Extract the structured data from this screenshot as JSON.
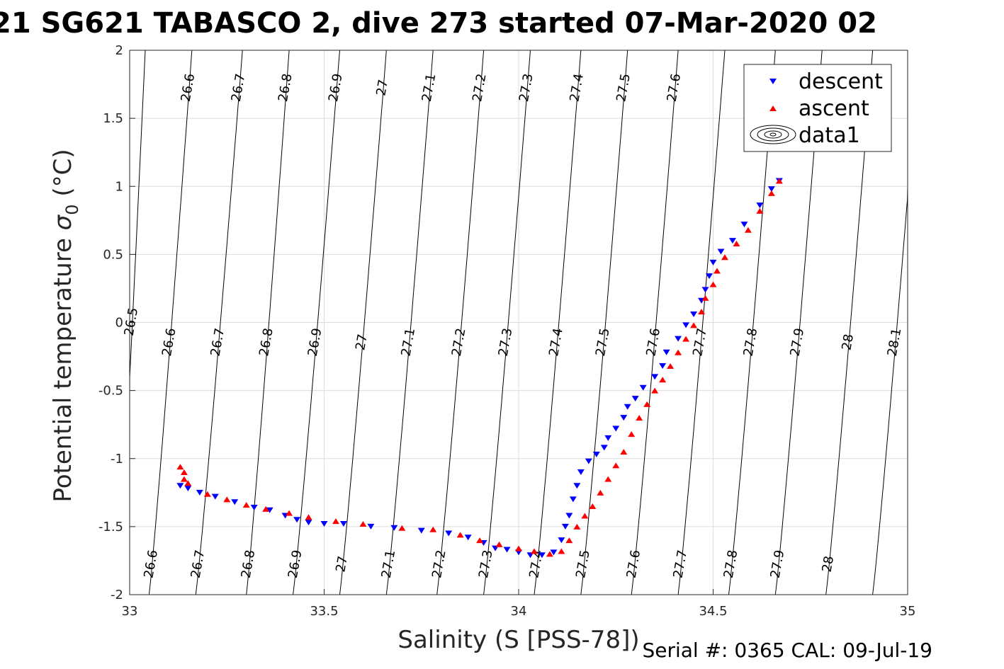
{
  "chart_data": {
    "type": "scatter",
    "title": "21 SG621 TABASCO 2, dive 273 started 07-Mar-2020 02",
    "xlabel": "Salinity (S [PSS-78])",
    "ylabel_main": "Potential temperature ",
    "ylabel_sigma": "σ",
    "ylabel_sub": "0",
    "ylabel_unit": " (°C)",
    "xlim": [
      33,
      35
    ],
    "ylim": [
      -2,
      2
    ],
    "x_ticks": [
      33,
      33.5,
      34,
      34.5,
      35
    ],
    "x_tick_labels": [
      "33",
      "33.5",
      "34",
      "34.5",
      "35"
    ],
    "y_ticks": [
      -2,
      -1.5,
      -1,
      -0.5,
      0,
      0.5,
      1,
      1.5,
      2
    ],
    "y_tick_labels": [
      "-2",
      "-1.5",
      "-1",
      "-0.5",
      "0",
      "0.5",
      "1",
      "1.5",
      "2"
    ],
    "grid": true,
    "legend_position": "top-right",
    "legend": [
      "descent",
      "ascent",
      "data1"
    ],
    "colors": {
      "descent": "#0000ff",
      "ascent": "#ff0000",
      "contour": "#000000",
      "grid": "#dcdcdc"
    },
    "footer": "Serial #: 0365  CAL: 09-Jul-19",
    "series": [
      {
        "name": "descent",
        "marker": "triangle-down",
        "points": [
          [
            33.13,
            -1.2
          ],
          [
            33.15,
            -1.22
          ],
          [
            33.18,
            -1.25
          ],
          [
            33.22,
            -1.28
          ],
          [
            33.27,
            -1.32
          ],
          [
            33.32,
            -1.36
          ],
          [
            33.36,
            -1.38
          ],
          [
            33.4,
            -1.42
          ],
          [
            33.43,
            -1.45
          ],
          [
            33.46,
            -1.47
          ],
          [
            33.5,
            -1.48
          ],
          [
            33.55,
            -1.48
          ],
          [
            33.62,
            -1.5
          ],
          [
            33.68,
            -1.51
          ],
          [
            33.75,
            -1.53
          ],
          [
            33.82,
            -1.55
          ],
          [
            33.87,
            -1.58
          ],
          [
            33.91,
            -1.62
          ],
          [
            33.94,
            -1.66
          ],
          [
            33.97,
            -1.67
          ],
          [
            34.0,
            -1.69
          ],
          [
            34.03,
            -1.71
          ],
          [
            34.06,
            -1.71
          ],
          [
            34.09,
            -1.69
          ],
          [
            34.11,
            -1.6
          ],
          [
            34.12,
            -1.5
          ],
          [
            34.13,
            -1.42
          ],
          [
            34.14,
            -1.3
          ],
          [
            34.15,
            -1.2
          ],
          [
            34.16,
            -1.1
          ],
          [
            34.18,
            -1.02
          ],
          [
            34.2,
            -0.97
          ],
          [
            34.22,
            -0.92
          ],
          [
            34.23,
            -0.85
          ],
          [
            34.25,
            -0.78
          ],
          [
            34.27,
            -0.7
          ],
          [
            34.28,
            -0.62
          ],
          [
            34.3,
            -0.56
          ],
          [
            34.32,
            -0.48
          ],
          [
            34.35,
            -0.4
          ],
          [
            34.37,
            -0.32
          ],
          [
            34.38,
            -0.22
          ],
          [
            34.41,
            -0.12
          ],
          [
            34.43,
            -0.02
          ],
          [
            34.45,
            0.06
          ],
          [
            34.47,
            0.16
          ],
          [
            34.48,
            0.24
          ],
          [
            34.49,
            0.34
          ],
          [
            34.5,
            0.44
          ],
          [
            34.52,
            0.52
          ],
          [
            34.55,
            0.6
          ],
          [
            34.58,
            0.72
          ],
          [
            34.62,
            0.86
          ],
          [
            34.65,
            0.98
          ],
          [
            34.67,
            1.04
          ]
        ]
      },
      {
        "name": "ascent",
        "marker": "triangle-up",
        "points": [
          [
            33.13,
            -1.06
          ],
          [
            33.14,
            -1.1
          ],
          [
            33.14,
            -1.15
          ],
          [
            33.15,
            -1.18
          ],
          [
            33.2,
            -1.26
          ],
          [
            33.25,
            -1.3
          ],
          [
            33.3,
            -1.34
          ],
          [
            33.35,
            -1.37
          ],
          [
            33.41,
            -1.4
          ],
          [
            33.46,
            -1.43
          ],
          [
            33.53,
            -1.46
          ],
          [
            33.6,
            -1.48
          ],
          [
            33.7,
            -1.51
          ],
          [
            33.78,
            -1.52
          ],
          [
            33.85,
            -1.56
          ],
          [
            33.9,
            -1.6
          ],
          [
            33.95,
            -1.63
          ],
          [
            34.0,
            -1.66
          ],
          [
            34.04,
            -1.68
          ],
          [
            34.08,
            -1.7
          ],
          [
            34.11,
            -1.68
          ],
          [
            34.13,
            -1.6
          ],
          [
            34.15,
            -1.5
          ],
          [
            34.17,
            -1.42
          ],
          [
            34.19,
            -1.35
          ],
          [
            34.21,
            -1.25
          ],
          [
            34.23,
            -1.15
          ],
          [
            34.25,
            -1.05
          ],
          [
            34.27,
            -0.95
          ],
          [
            34.29,
            -0.82
          ],
          [
            34.31,
            -0.7
          ],
          [
            34.33,
            -0.6
          ],
          [
            34.35,
            -0.5
          ],
          [
            34.37,
            -0.42
          ],
          [
            34.39,
            -0.32
          ],
          [
            34.41,
            -0.22
          ],
          [
            34.43,
            -0.12
          ],
          [
            34.45,
            -0.02
          ],
          [
            34.47,
            0.08
          ],
          [
            34.48,
            0.18
          ],
          [
            34.5,
            0.28
          ],
          [
            34.51,
            0.38
          ],
          [
            34.53,
            0.48
          ],
          [
            34.56,
            0.58
          ],
          [
            34.59,
            0.68
          ],
          [
            34.62,
            0.82
          ],
          [
            34.65,
            0.95
          ],
          [
            34.67,
            1.04
          ]
        ]
      }
    ],
    "contours": [
      {
        "label": "26.5",
        "x_top": 33.04,
        "x_bottom": 32.97,
        "label_pos": [
          [
            0.76,
            0.97
          ]
        ]
      },
      {
        "label": "26.6",
        "x_top": 33.16,
        "x_bottom": 33.05,
        "label_pos": [
          [
            0.69,
            1.28
          ],
          [
            0.42,
            0.18
          ],
          [
            0.05,
            1.6
          ]
        ]
      },
      {
        "label": "26.7",
        "x_top": 33.29,
        "x_bottom": 33.17,
        "label_pos": [
          [
            0.64,
            1.4
          ],
          [
            0.42,
            0.3
          ],
          [
            0.05,
            1.7
          ]
        ]
      },
      {
        "label": "26.8",
        "x_top": 33.41,
        "x_bottom": 33.3,
        "label_pos": [
          [
            0.64,
            1.52
          ],
          [
            0.42,
            0.42
          ],
          [
            0.05,
            1.82
          ]
        ]
      },
      {
        "label": "26.9",
        "x_top": 33.54,
        "x_bottom": 33.42,
        "label_pos": [
          [
            0.64,
            1.64
          ],
          [
            0.42,
            0.54
          ],
          [
            0.05,
            1.94
          ]
        ]
      },
      {
        "label": "27",
        "x_top": 33.66,
        "x_bottom": 33.54,
        "label_pos": [
          [
            0.64,
            1.76
          ],
          [
            0.42,
            0.66
          ],
          [
            0.05,
            2.06
          ]
        ]
      },
      {
        "label": "27.1",
        "x_top": 33.78,
        "x_bottom": 33.66,
        "label_pos": [
          [
            0.64,
            1.88
          ],
          [
            0.42,
            0.78
          ],
          [
            0.05,
            2.18
          ]
        ]
      },
      {
        "label": "27.2",
        "x_top": 33.91,
        "x_bottom": 33.79,
        "label_pos": [
          [
            0.64,
            2.0
          ],
          [
            0.42,
            0.9
          ],
          [
            0.05,
            2.3
          ]
        ]
      },
      {
        "label": "27.3",
        "x_top": 34.03,
        "x_bottom": 33.91,
        "label_pos": [
          [
            0.64,
            2.12
          ],
          [
            0.42,
            1.02
          ],
          [
            0.05,
            2.42
          ]
        ]
      },
      {
        "label": "27.4",
        "x_top": 34.16,
        "x_bottom": 34.04,
        "label_pos": [
          [
            0.64,
            2.24
          ],
          [
            0.42,
            1.14
          ],
          [
            0.05,
            2.54
          ]
        ]
      },
      {
        "label": "27.5",
        "x_top": 34.28,
        "x_bottom": 34.16,
        "label_pos": [
          [
            0.64,
            2.36
          ],
          [
            0.42,
            1.26
          ],
          [
            0.05,
            2.66
          ]
        ]
      },
      {
        "label": "27.6",
        "x_top": 34.41,
        "x_bottom": 34.29,
        "label_pos": [
          [
            0.64,
            2.48
          ],
          [
            0.42,
            1.38
          ],
          [
            0.05,
            2.78
          ]
        ]
      },
      {
        "label": "27.7",
        "x_top": 34.53,
        "x_bottom": 34.41,
        "label_pos": [
          [
            0.42,
            1.5
          ],
          [
            0.05,
            2.9
          ]
        ]
      },
      {
        "label": "27.8",
        "x_top": 34.66,
        "x_bottom": 34.54,
        "label_pos": [
          [
            0.42,
            1.62
          ],
          [
            0.05,
            3.02
          ]
        ]
      },
      {
        "label": "27.9",
        "x_top": 34.78,
        "x_bottom": 34.66,
        "label_pos": [
          [
            0.42,
            1.74
          ],
          [
            0.05,
            3.14
          ]
        ]
      },
      {
        "label": "28",
        "x_top": 34.91,
        "x_bottom": 34.79,
        "label_pos": [
          [
            0.78,
            1.86
          ],
          [
            0.42,
            1.86
          ],
          [
            0.05,
            3.26
          ]
        ]
      },
      {
        "label": "28.1",
        "x_top": 35.03,
        "x_bottom": 34.91,
        "label_pos": [
          [
            0.42,
            1.98
          ]
        ]
      }
    ]
  }
}
